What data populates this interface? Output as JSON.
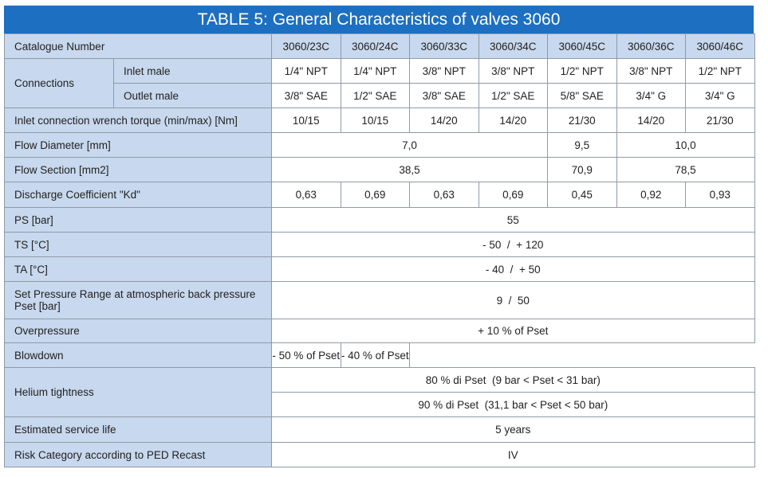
{
  "title": "TABLE 5: General Characteristics of valves 3060",
  "table": {
    "header": {
      "label": "Catalogue Number",
      "models": [
        "3060/23C",
        "3060/24C",
        "3060/33C",
        "3060/34C",
        "3060/45C",
        "3060/36C",
        "3060/46C"
      ]
    },
    "connections": {
      "label": "Connections",
      "inlet": {
        "label": "Inlet male",
        "values": [
          "1/4\" NPT",
          "1/4\" NPT",
          "3/8\" NPT",
          "3/8\" NPT",
          "1/2\" NPT",
          "3/8\" NPT",
          "1/2\" NPT"
        ]
      },
      "outlet": {
        "label": "Outlet male",
        "values": [
          "3/8\" SAE",
          "1/2\" SAE",
          "3/8\" SAE",
          "1/2\" SAE",
          "5/8\" SAE",
          "3/4\" G",
          "3/4\" G"
        ]
      }
    },
    "rows": [
      {
        "label": "Inlet connection wrench torque (min/max) [Nm]",
        "values": [
          "10/15",
          "10/15",
          "14/20",
          "14/20",
          "21/30",
          "14/20",
          "21/30"
        ]
      },
      {
        "label": "Flow Diameter [mm]",
        "values": [
          "7,0",
          "9,5",
          "10,0"
        ]
      },
      {
        "label": "Flow Section [mm2]",
        "values": [
          "38,5",
          "70,9",
          "78,5"
        ]
      },
      {
        "label": "Discharge Coefficient \"Kd\"",
        "values": [
          "0,63",
          "0,69",
          "0,63",
          "0,69",
          "0,45",
          "0,92",
          "0,93"
        ]
      },
      {
        "label": "PS [bar]",
        "values": [
          "55"
        ]
      },
      {
        "label": "TS [°C]",
        "values": [
          "- 50  /  + 120"
        ]
      },
      {
        "label": "TA [°C]",
        "values": [
          "- 40  /  + 50"
        ]
      },
      {
        "label": "Set Pressure Range at atmospheric back pressure Pset [bar]",
        "values": [
          "9  /  50"
        ]
      },
      {
        "label": "Overpressure",
        "values": [
          "+ 10 % of Pset"
        ]
      },
      {
        "label": "Blowdown",
        "values": [
          "- 50 % of Pset",
          "- 40 % of Pset"
        ]
      },
      {
        "label": "Helium tightness",
        "values": [
          "80 % di Pset  (9 bar < Pset < 31 bar)",
          "90 % di Pset  (31,1 bar < Pset < 50 bar)"
        ]
      },
      {
        "label": "Estimated service life",
        "values": [
          "5 years"
        ]
      },
      {
        "label": "Risk Category according to PED Recast",
        "values": [
          "IV"
        ]
      }
    ]
  }
}
